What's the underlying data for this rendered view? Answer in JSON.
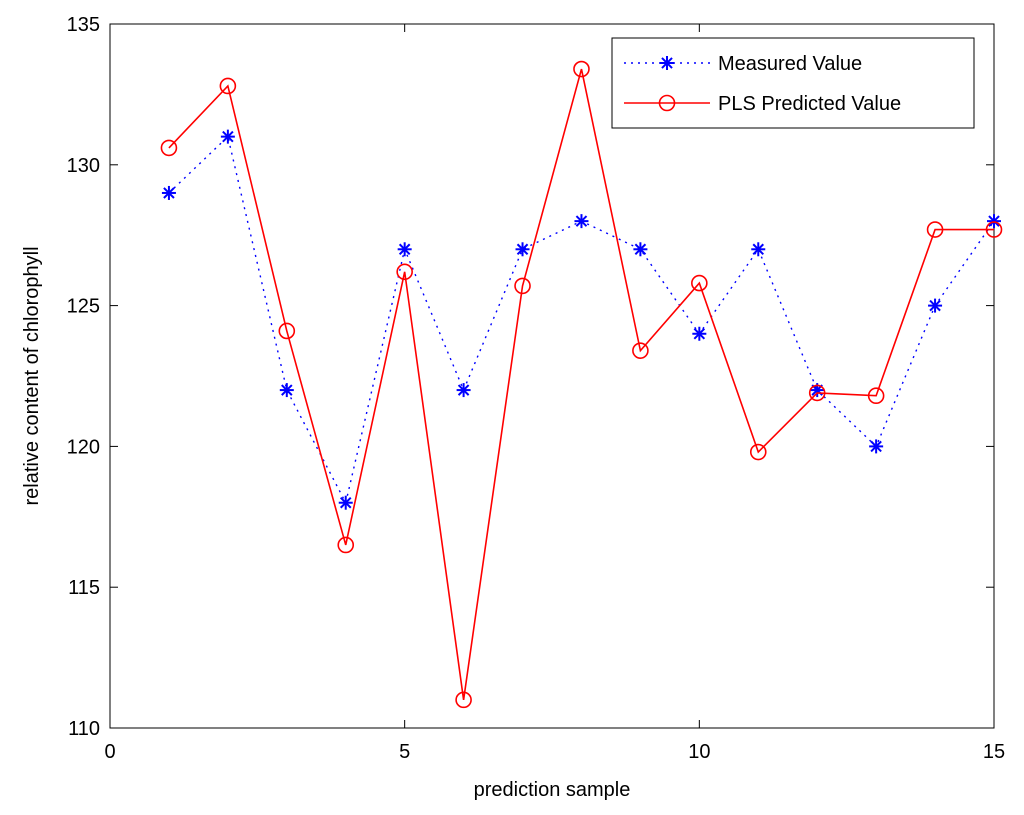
{
  "chart_data": {
    "type": "line",
    "title": "",
    "xlabel": "prediction sample",
    "ylabel": "relative content of chlorophyll",
    "xlim": [
      0,
      15
    ],
    "ylim": [
      110,
      135
    ],
    "xticks": [
      0,
      5,
      10,
      15
    ],
    "yticks": [
      110,
      115,
      120,
      125,
      130,
      135
    ],
    "grid": false,
    "legend_position": "top-right",
    "x": [
      1,
      2,
      3,
      4,
      5,
      6,
      7,
      8,
      9,
      10,
      11,
      12,
      13,
      14,
      15
    ],
    "series": [
      {
        "name": "Measured Value",
        "color": "#0000ff",
        "line": "dotted",
        "marker": "asterisk",
        "values": [
          129,
          131,
          122,
          118,
          127,
          122,
          127,
          128,
          127,
          124,
          127,
          122,
          120,
          125,
          128
        ]
      },
      {
        "name": "PLS Predicted Value",
        "color": "#ff0000",
        "line": "solid",
        "marker": "circle",
        "values": [
          130.6,
          132.8,
          124.1,
          116.5,
          126.2,
          111.0,
          125.7,
          133.4,
          123.4,
          125.8,
          119.8,
          121.9,
          121.8,
          127.7,
          127.7
        ]
      }
    ]
  }
}
